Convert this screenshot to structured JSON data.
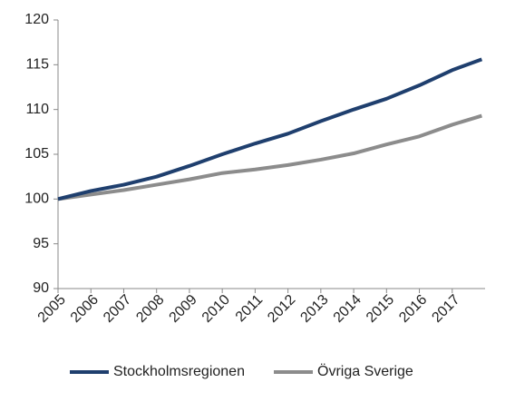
{
  "chart_data": {
    "type": "line",
    "x": [
      2005,
      2006,
      2007,
      2008,
      2009,
      2010,
      2011,
      2012,
      2013,
      2014,
      2015,
      2016,
      2017,
      2017.9
    ],
    "series": [
      {
        "name": "Stockholmsregionen",
        "color": "#1f3f6e",
        "values": [
          100,
          100.9,
          101.6,
          102.5,
          103.7,
          105.0,
          106.2,
          107.3,
          108.7,
          110.0,
          111.2,
          112.7,
          114.4,
          115.6
        ]
      },
      {
        "name": "Övriga Sverige",
        "color": "#8c8c8c",
        "values": [
          100,
          100.5,
          101.0,
          101.6,
          102.2,
          102.9,
          103.3,
          103.8,
          104.4,
          105.1,
          106.1,
          107.0,
          108.3,
          109.3
        ]
      }
    ],
    "xlim": [
      2005,
      2018
    ],
    "xticks": [
      2005,
      2006,
      2007,
      2008,
      2009,
      2010,
      2011,
      2012,
      2013,
      2014,
      2015,
      2016,
      2017
    ],
    "ylim": [
      90,
      120
    ],
    "yticks": [
      90,
      95,
      100,
      105,
      110,
      115,
      120
    ],
    "legend": "bottom"
  }
}
